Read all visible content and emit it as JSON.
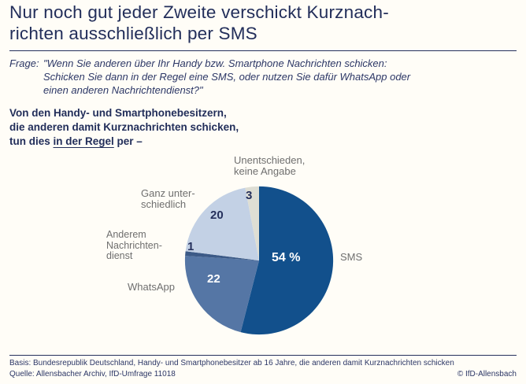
{
  "title": {
    "lines": [
      "Nur noch gut jeder Zweite verschickt Kurznach-",
      "richten ausschließlich per SMS"
    ]
  },
  "question": {
    "label": "Frage:",
    "lines": [
      "\"Wenn Sie anderen über Ihr Handy bzw. Smartphone Nachrichten schicken:",
      "Schicken Sie dann in der Regel eine SMS, oder nutzen Sie dafür WhatsApp oder",
      "einen anderen Nachrichtendienst?\""
    ]
  },
  "lead_in": {
    "lines": [
      "Von den Handy- und Smartphonebesitzern,",
      "die anderen damit Kurznachrichten schicken,"
    ],
    "line3_pre": "tun dies ",
    "line3_underline": "in der Regel",
    "line3_post": " per –"
  },
  "chart_data": {
    "type": "pie",
    "title": "Von den Handy- und Smartphonebesitzern, die anderen damit Kurznachrichten schicken, tun dies in der Regel per –",
    "unit": "percent",
    "total": 100,
    "start_angle_deg": 0,
    "direction": "clockwise",
    "slices": [
      {
        "id": "sms",
        "label": "SMS",
        "value": 54,
        "display_value": "54 %",
        "display_lines": [
          "SMS"
        ],
        "color": "#12508c",
        "value_text_color": "#ffffff"
      },
      {
        "id": "whatsapp",
        "label": "WhatsApp",
        "value": 22,
        "display_value": "22",
        "display_lines": [
          "WhatsApp"
        ],
        "color": "#5576a5",
        "value_text_color": "#ffffff"
      },
      {
        "id": "anderer-nachrichtendienst",
        "label": "Anderem Nachrichtendienst",
        "value": 1,
        "display_value": "1",
        "display_lines": [
          "Anderem",
          "Nachrichten-",
          "dienst"
        ],
        "color": "#3c5a87",
        "value_text_color": "#25305c"
      },
      {
        "id": "ganz-unterschiedlich",
        "label": "Ganz unterschiedlich",
        "value": 20,
        "display_value": "20",
        "display_lines": [
          "Ganz unter-",
          "schiedlich"
        ],
        "color": "#c3d1e5",
        "value_text_color": "#25305c"
      },
      {
        "id": "unentschieden",
        "label": "Unentschieden, keine Angabe",
        "value": 3,
        "display_value": "3",
        "display_lines": [
          "Unentschieden,",
          "keine Angabe"
        ],
        "color": "#deded4",
        "value_text_color": "#25305c"
      }
    ]
  },
  "footer": {
    "basis": "Basis: Bundesrepublik Deutschland, Handy- und Smartphonebesitzer ab 16 Jahre, die anderen damit Kurznachrichten schicken",
    "quelle": "Quelle: Allensbacher Archiv, IfD-Umfrage 11018",
    "copyright": "© IfD-Allensbach"
  },
  "colors": {
    "headline_navy": "#222e5a",
    "label_gray": "#6f6f6f",
    "background": "#fffdf7"
  }
}
